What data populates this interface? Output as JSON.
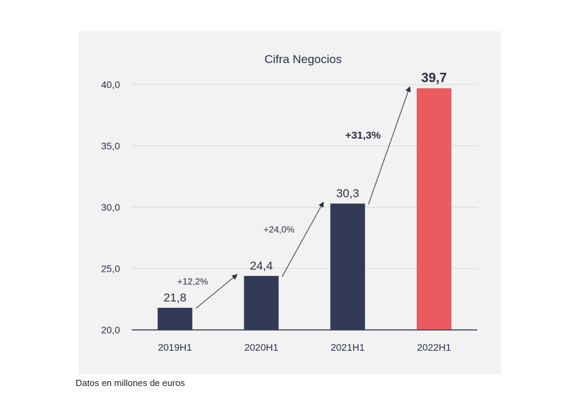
{
  "chart_data": {
    "type": "bar",
    "title": "Cifra Negocios",
    "categories": [
      "2019H1",
      "2020H1",
      "2021H1",
      "2022H1"
    ],
    "values": [
      21.8,
      24.4,
      30.3,
      39.7
    ],
    "value_labels": [
      "21,8",
      "24,4",
      "30,3",
      "39,7"
    ],
    "highlight_index": 3,
    "xlabel": "",
    "ylabel": "",
    "ylim": [
      20,
      40
    ],
    "yticks": [
      20,
      25,
      30,
      35,
      40
    ],
    "ytick_labels": [
      "20,0",
      "25,0",
      "30,0",
      "35,0",
      "40,0"
    ],
    "grid": true,
    "growth_annotations": [
      {
        "from": 0,
        "to": 1,
        "label": "+12,2%",
        "bold": false
      },
      {
        "from": 1,
        "to": 2,
        "label": "+24,0%",
        "bold": false
      },
      {
        "from": 2,
        "to": 3,
        "label": "+31,3%",
        "bold": true
      }
    ]
  },
  "colors": {
    "bar": "#333a56",
    "highlight": "#eb5a5e",
    "text": "#2b2f45",
    "grid": "#d9d9d9",
    "axis": "#333a56",
    "panel": "#f2f2f2"
  },
  "footnote": "Datos en millones de euros"
}
